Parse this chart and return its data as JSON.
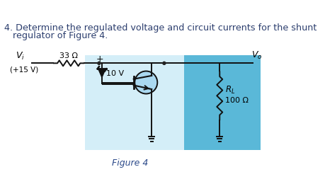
{
  "title_line1": "4. Determine the regulated voltage and circuit currents for the shunt",
  "title_line2": "   regulator of Figure 4.",
  "figure_label": "Figure 4",
  "vi_label": "V",
  "vi_subscript": "i",
  "vi_voltage": "(+15 V)",
  "resistor1_label": "33 Ω",
  "zener_voltage": "10 V",
  "rl_label": "R",
  "rl_subscript": "L",
  "rl_value": "100 Ω",
  "vo_label": "V",
  "vo_subscript": "o",
  "bg_color": "#ffffff",
  "title_color": "#2c3e6e",
  "bg_circuit_light": "#d4eef8",
  "bg_circuit_dark": "#5ab8d8",
  "dot_color": "#222222",
  "wire_color": "#111111",
  "figure_label_color": "#2c4a8a"
}
